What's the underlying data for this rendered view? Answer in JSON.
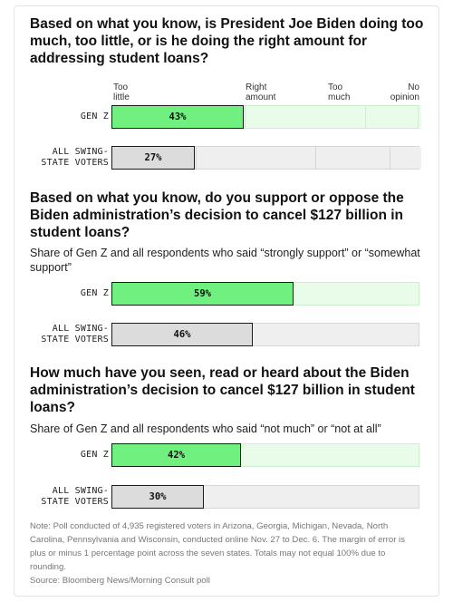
{
  "chart_data": [
    {
      "type": "bar",
      "title": "Based on what you know, is President Joe Biden doing too much, too little, or is he doing the right amount for addressing student loans?",
      "categories": [
        "GEN Z",
        "ALL SWING-STATE VOTERS"
      ],
      "category_lines": [
        [
          "GEN Z"
        ],
        [
          "ALL SWING-",
          "STATE VOTERS"
        ]
      ],
      "scale_labels": [
        [
          "Too",
          "little"
        ],
        [
          "Right",
          "amount"
        ],
        [
          "Too",
          "much"
        ],
        [
          "No",
          "opinion"
        ]
      ],
      "series": [
        {
          "segments": [
            43,
            39,
            17,
            1
          ],
          "label": "43%"
        },
        {
          "segments": [
            27,
            39,
            24,
            10
          ],
          "label": "27%"
        }
      ],
      "series_colors": [
        "#6ff07f",
        "#dcdcdc"
      ]
    },
    {
      "type": "bar",
      "title": "Based on what you know, do you support or oppose the Biden administration’s decision to cancel $127 billion in student loans?",
      "subtitle": "Share of Gen Z and all respondents who said “strongly support” or “somewhat support”",
      "categories": [
        "GEN Z",
        "ALL SWING-STATE VOTERS"
      ],
      "category_lines": [
        [
          "GEN Z"
        ],
        [
          "ALL SWING-",
          "STATE VOTERS"
        ]
      ],
      "values": [
        59,
        46
      ],
      "value_labels": [
        "59%",
        "46%"
      ],
      "ylim": [
        0,
        100
      ]
    },
    {
      "type": "bar",
      "title": "How much have you seen, read or heard about the Biden administration’s decision to cancel $127 billion in student loans?",
      "subtitle": "Share of Gen Z and all respondents who said “not much” or “not at all”",
      "categories": [
        "GEN Z",
        "ALL SWING-STATE VOTERS"
      ],
      "category_lines": [
        [
          "GEN Z"
        ],
        [
          "ALL SWING-",
          "STATE VOTERS"
        ]
      ],
      "values": [
        42,
        30
      ],
      "value_labels": [
        "42%",
        "30%"
      ],
      "ylim": [
        0,
        100
      ]
    }
  ],
  "note": "Note: Poll conducted of 4,935 registered voters in Arizona, Georgia, Michigan, Nevada, North Carolina, Pennsylvania and Wisconsin, conducted online Nov. 27 to Dec. 6. The margin of error is plus or minus 1 percentage point across the seven states. Totals may not equal 100% due to rounding.",
  "source": "Source: Bloomberg News/Morning Consult poll"
}
